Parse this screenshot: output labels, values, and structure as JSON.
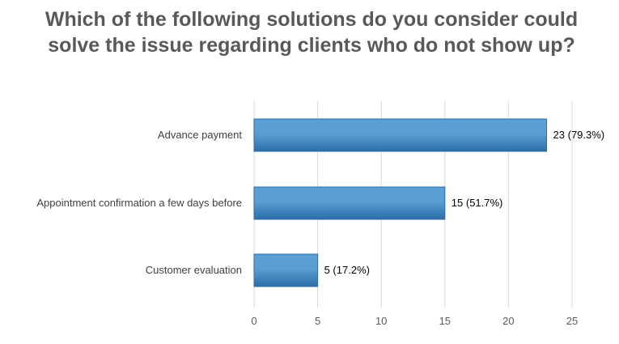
{
  "chart_data": {
    "type": "bar",
    "orientation": "horizontal",
    "title": "Which of the following solutions do you consider could solve the issue regarding clients who do not show up?",
    "categories": [
      "Advance payment",
      "Appointment confirmation a few days before",
      "Customer evaluation"
    ],
    "values": [
      23,
      15,
      5
    ],
    "data_labels": [
      "23 (79.3%)",
      "15 (51.7%)",
      "5 (17.2%)"
    ],
    "xlim": [
      0,
      25
    ],
    "x_ticks": [
      0,
      5,
      10,
      15,
      20,
      25
    ],
    "x_tick_labels": [
      "0",
      "5",
      "10",
      "15",
      "20",
      "25"
    ],
    "grid": "vertical",
    "legend": "none",
    "colors": {
      "bar_light": "#5a9fd4",
      "bar_dark": "#2a6da8",
      "bar_edge": "#2e6ea6",
      "grid": "#d9d9d9"
    }
  }
}
